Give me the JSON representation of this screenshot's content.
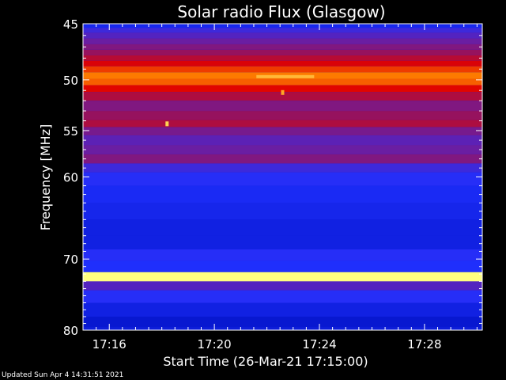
{
  "chart_data": {
    "type": "heatmap",
    "title": "Solar radio Flux (Glasgow)",
    "xlabel": "Start Time (26-Mar-21 17:15:00)",
    "ylabel": "Frequency [MHz]",
    "x_range_minutes": [
      0,
      15.2
    ],
    "x_tick_labels": [
      "17:16",
      "17:20",
      "17:24",
      "17:28"
    ],
    "x_tick_minutes": [
      1,
      5,
      9,
      13
    ],
    "ylim": [
      45,
      80
    ],
    "y_scale": "log",
    "y_ticks": [
      45,
      50,
      55,
      60,
      70,
      80
    ],
    "y_tick_labels": [
      "45",
      "50",
      "55",
      "60",
      "70",
      "80"
    ],
    "colormap": [
      "#000060",
      "#0010c0",
      "#2030ff",
      "#6020b0",
      "#a01050",
      "#e00000",
      "#ff8000",
      "#ffff80"
    ],
    "bands": [
      {
        "freq": 45.2,
        "level": 0.25
      },
      {
        "freq": 45.5,
        "level": 0.35
      },
      {
        "freq": 46.0,
        "level": 0.4
      },
      {
        "freq": 46.5,
        "level": 0.45
      },
      {
        "freq": 47.0,
        "level": 0.5
      },
      {
        "freq": 47.5,
        "level": 0.55
      },
      {
        "freq": 48.0,
        "level": 0.62
      },
      {
        "freq": 48.5,
        "level": 0.7
      },
      {
        "freq": 49.0,
        "level": 0.78
      },
      {
        "freq": 49.6,
        "level": 0.85
      },
      {
        "freq": 50.2,
        "level": 0.82
      },
      {
        "freq": 50.8,
        "level": 0.72
      },
      {
        "freq": 51.5,
        "level": 0.6
      },
      {
        "freq": 52.5,
        "level": 0.5
      },
      {
        "freq": 53.5,
        "level": 0.55
      },
      {
        "freq": 54.3,
        "level": 0.6
      },
      {
        "freq": 55.0,
        "level": 0.48
      },
      {
        "freq": 56.0,
        "level": 0.42
      },
      {
        "freq": 57.0,
        "level": 0.45
      },
      {
        "freq": 58.0,
        "level": 0.5
      },
      {
        "freq": 59.0,
        "level": 0.35
      },
      {
        "freq": 60.0,
        "level": 0.3
      },
      {
        "freq": 62.0,
        "level": 0.26
      },
      {
        "freq": 64.0,
        "level": 0.24
      },
      {
        "freq": 66.0,
        "level": 0.22
      },
      {
        "freq": 68.0,
        "level": 0.22
      },
      {
        "freq": 69.5,
        "level": 0.3
      },
      {
        "freq": 71.0,
        "level": 0.28
      },
      {
        "freq": 72.5,
        "level": 1.0
      },
      {
        "freq": 73.5,
        "level": 0.4
      },
      {
        "freq": 75.0,
        "level": 0.3
      },
      {
        "freq": 77.0,
        "level": 0.22
      },
      {
        "freq": 79.0,
        "level": 0.18
      }
    ],
    "bursts": [
      {
        "minute": 3.2,
        "freq": 54.3,
        "level": 0.95
      },
      {
        "minute": 7.6,
        "freq": 51.2,
        "level": 0.9
      }
    ],
    "flux_enhancement": {
      "minute_start": 6.6,
      "minute_end": 8.8,
      "freq": 49.7,
      "level": 0.92
    }
  },
  "footer": "Updated Sun Apr  4 14:31:51 2021"
}
